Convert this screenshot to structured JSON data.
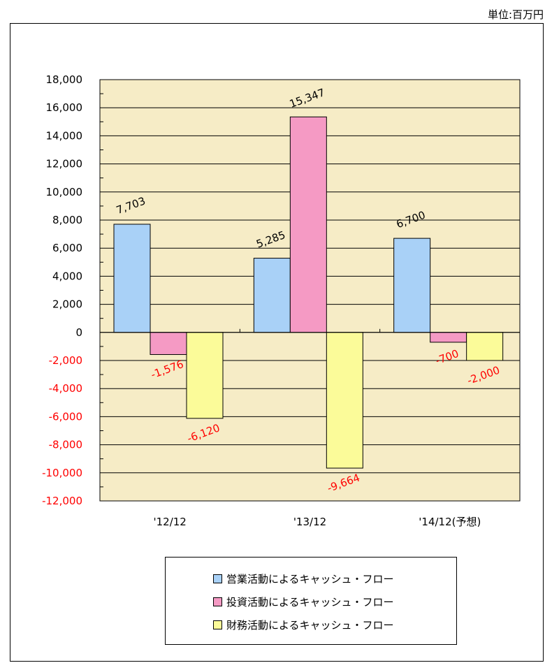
{
  "unit_label": "単位:百万円",
  "colors": {
    "plot_bg": "#f6ecc6",
    "operating": "#a9d1f7",
    "investing": "#f59ac4",
    "financing": "#fbfb99",
    "negative_text": "#ff0000",
    "positive_text": "#000000"
  },
  "chart_data": {
    "type": "bar",
    "categories": [
      "'12/12",
      "'13/12",
      "'14/12(予想)"
    ],
    "series": [
      {
        "name": "営業活動によるキャッシュ・フロー",
        "values": [
          7703,
          5285,
          6700
        ],
        "labels": [
          "7,703",
          "5,285",
          "6,700"
        ]
      },
      {
        "name": "投資活動によるキャッシュ・フロー",
        "values": [
          -1576,
          15347,
          -700
        ],
        "labels": [
          "-1,576",
          "15,347",
          "-700"
        ]
      },
      {
        "name": "財務活動によるキャッシュ・フロー",
        "values": [
          -6120,
          -9664,
          -2000
        ],
        "labels": [
          "-6,120",
          "-9,664",
          "-2,000"
        ]
      }
    ],
    "ylim": [
      -12000,
      18000
    ],
    "ytick_step": 2000,
    "yticks": [
      "18,000",
      "16,000",
      "14,000",
      "12,000",
      "10,000",
      "8,000",
      "6,000",
      "4,000",
      "2,000",
      "0",
      "-2,000",
      "-4,000",
      "-6,000",
      "-8,000",
      "-10,000",
      "-12,000"
    ],
    "grid": true,
    "legend_position": "bottom"
  }
}
